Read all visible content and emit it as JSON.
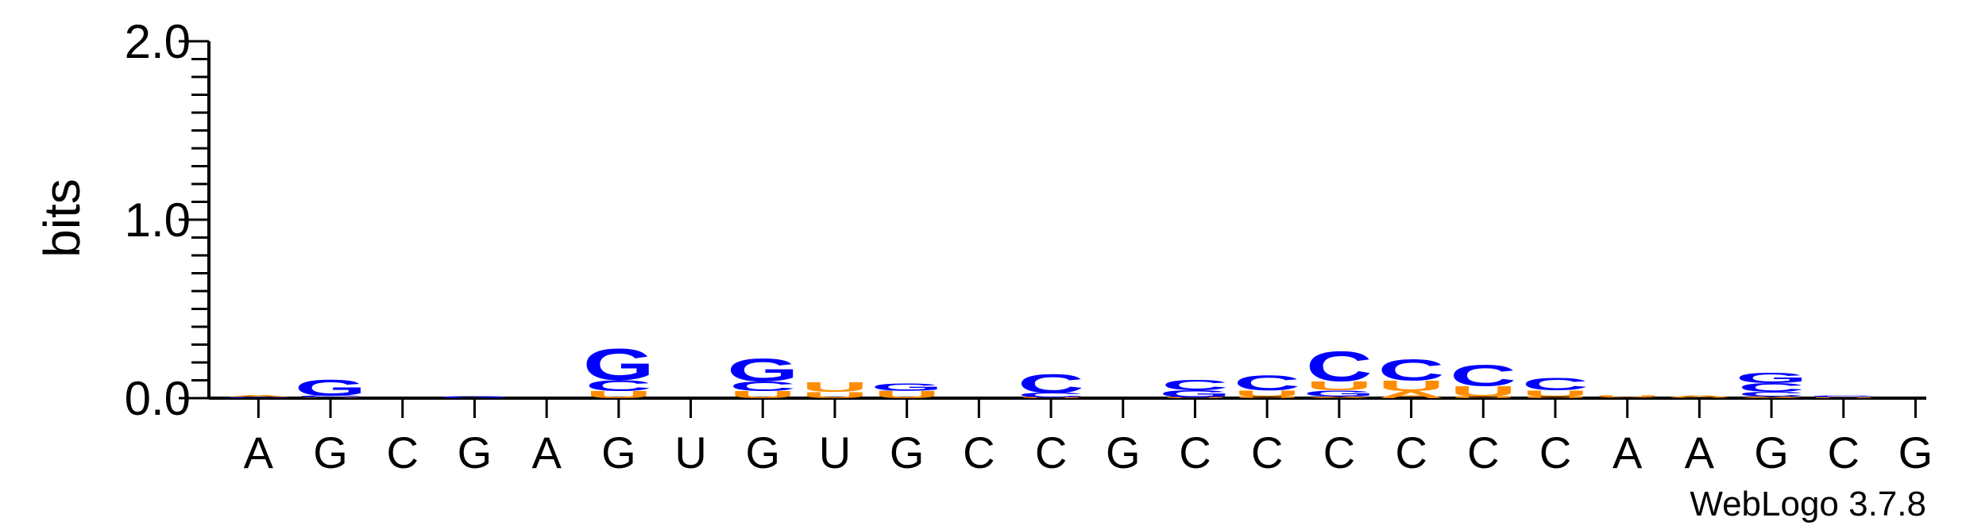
{
  "chart_data": {
    "type": "sequence-logo",
    "ylabel": "bits",
    "ylim": [
      0,
      2.0
    ],
    "yticks": [
      {
        "value": 0.0,
        "label": "0.0"
      },
      {
        "value": 1.0,
        "label": "1.0"
      },
      {
        "value": 2.0,
        "label": "2.0"
      }
    ],
    "consensus": [
      "A",
      "G",
      "C",
      "G",
      "A",
      "G",
      "U",
      "G",
      "U",
      "G",
      "C",
      "C",
      "G",
      "C",
      "C",
      "C",
      "C",
      "C",
      "C",
      "A",
      "A",
      "G",
      "C",
      "G"
    ],
    "colors": {
      "A": "#ff8c00",
      "C": "#0000ff",
      "G": "#0000ff",
      "U": "#ff8c00"
    },
    "positions": [
      {
        "x": 1,
        "stack": [
          [
            "C",
            0.006
          ],
          [
            "A",
            0.01
          ]
        ]
      },
      {
        "x": 2,
        "stack": [
          [
            "U",
            0.004
          ],
          [
            "C",
            0.01
          ],
          [
            "G",
            0.09
          ]
        ]
      },
      {
        "x": 3,
        "stack": []
      },
      {
        "x": 4,
        "stack": [
          [
            "G",
            0.012
          ]
        ]
      },
      {
        "x": 5,
        "stack": []
      },
      {
        "x": 6,
        "stack": [
          [
            "U",
            0.04
          ],
          [
            "C",
            0.062
          ],
          [
            "G",
            0.18
          ]
        ]
      },
      {
        "x": 7,
        "stack": []
      },
      {
        "x": 8,
        "stack": [
          [
            "U",
            0.04
          ],
          [
            "C",
            0.055
          ],
          [
            "G",
            0.13
          ]
        ]
      },
      {
        "x": 9,
        "stack": [
          [
            "U",
            0.035
          ],
          [
            "C",
            0.002
          ],
          [
            "U",
            0.055
          ]
        ]
      },
      {
        "x": 10,
        "stack": [
          [
            "U",
            0.04
          ],
          [
            "C",
            0.003
          ],
          [
            "G",
            0.04
          ]
        ]
      },
      {
        "x": 11,
        "stack": []
      },
      {
        "x": 12,
        "stack": [
          [
            "U",
            0.005
          ],
          [
            "C",
            0.025
          ],
          [
            "C",
            0.11
          ]
        ]
      },
      {
        "x": 13,
        "stack": []
      },
      {
        "x": 14,
        "stack": [
          [
            "U",
            0.005
          ],
          [
            "G",
            0.04
          ],
          [
            "C",
            0.06
          ]
        ]
      },
      {
        "x": 15,
        "stack": [
          [
            "U",
            0.01
          ],
          [
            "U",
            0.035
          ],
          [
            "C",
            0.085
          ]
        ]
      },
      {
        "x": 16,
        "stack": [
          [
            "A",
            0.01
          ],
          [
            "G",
            0.035
          ],
          [
            "U",
            0.05
          ],
          [
            "C",
            0.17
          ]
        ]
      },
      {
        "x": 17,
        "stack": [
          [
            "A",
            0.04
          ],
          [
            "U",
            0.06
          ],
          [
            "C",
            0.12
          ]
        ]
      },
      {
        "x": 18,
        "stack": [
          [
            "U",
            0.01
          ],
          [
            "U",
            0.06
          ],
          [
            "C",
            0.12
          ]
        ]
      },
      {
        "x": 19,
        "stack": [
          [
            "U",
            0.01
          ],
          [
            "U",
            0.035
          ],
          [
            "C",
            0.07
          ]
        ]
      },
      {
        "x": 20,
        "stack": [
          [
            "A",
            0.004
          ],
          [
            "U",
            0.012
          ]
        ]
      },
      {
        "x": 21,
        "stack": [
          [
            "U",
            0.004
          ],
          [
            "A",
            0.01
          ]
        ]
      },
      {
        "x": 22,
        "stack": [
          [
            "A",
            0.01
          ],
          [
            "C",
            0.025
          ],
          [
            "C",
            0.05
          ],
          [
            "G",
            0.06
          ]
        ]
      },
      {
        "x": 23,
        "stack": [
          [
            "U",
            0.005
          ],
          [
            "C",
            0.01
          ]
        ]
      },
      {
        "x": 24,
        "stack": []
      }
    ]
  },
  "footer": "WebLogo 3.7.8"
}
